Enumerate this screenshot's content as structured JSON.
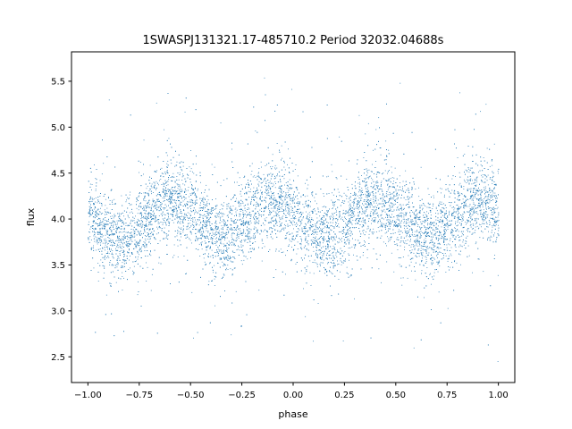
{
  "chart_data": {
    "type": "scatter",
    "title": "1SWASPJ131321.17-485710.2 Period 32032.04688s",
    "xlabel": "phase",
    "ylabel": "flux",
    "xlim": [
      -1.08,
      1.08
    ],
    "ylim": [
      2.22,
      5.82
    ],
    "x_ticks": [
      {
        "value": -1.0,
        "label": "−1.00"
      },
      {
        "value": -0.75,
        "label": "−0.75"
      },
      {
        "value": -0.5,
        "label": "−0.50"
      },
      {
        "value": -0.25,
        "label": "−0.25"
      },
      {
        "value": 0.0,
        "label": "0.00"
      },
      {
        "value": 0.25,
        "label": "0.25"
      },
      {
        "value": 0.5,
        "label": "0.50"
      },
      {
        "value": 0.75,
        "label": "0.75"
      },
      {
        "value": 1.0,
        "label": "1.00"
      }
    ],
    "y_ticks": [
      {
        "value": 2.5,
        "label": "2.5"
      },
      {
        "value": 3.0,
        "label": "3.0"
      },
      {
        "value": 3.5,
        "label": "3.5"
      },
      {
        "value": 4.0,
        "label": "4.0"
      },
      {
        "value": 4.5,
        "label": "4.5"
      },
      {
        "value": 5.0,
        "label": "5.0"
      },
      {
        "value": 5.5,
        "label": "5.5"
      }
    ],
    "grid": false,
    "legend": "none",
    "series": [
      {
        "color": "#1f77b4",
        "marker": "point",
        "x": [
          -1.0,
          -0.95,
          -0.9,
          -0.85,
          -0.8,
          -0.75,
          -0.7,
          -0.65,
          -0.6,
          -0.55,
          -0.5,
          -0.45,
          -0.4,
          -0.35,
          -0.3,
          -0.25,
          -0.2,
          -0.15,
          -0.1,
          -0.05,
          0.0,
          0.05,
          0.1,
          0.15,
          0.2,
          0.25,
          0.3,
          0.35,
          0.4,
          0.45,
          0.5,
          0.55,
          0.6,
          0.65,
          0.7,
          0.75,
          0.8,
          0.85,
          0.9,
          0.95,
          1.0
        ],
        "y": [
          4.05,
          3.92,
          3.82,
          3.76,
          3.8,
          3.92,
          4.06,
          4.17,
          4.22,
          4.2,
          4.1,
          3.97,
          3.86,
          3.8,
          3.83,
          3.94,
          4.07,
          4.17,
          4.2,
          4.16,
          4.06,
          3.94,
          3.84,
          3.79,
          3.82,
          3.93,
          4.06,
          4.17,
          4.22,
          4.2,
          4.1,
          3.97,
          3.86,
          3.8,
          3.83,
          3.94,
          4.07,
          4.16,
          4.2,
          4.17,
          4.08
        ]
      }
    ]
  }
}
